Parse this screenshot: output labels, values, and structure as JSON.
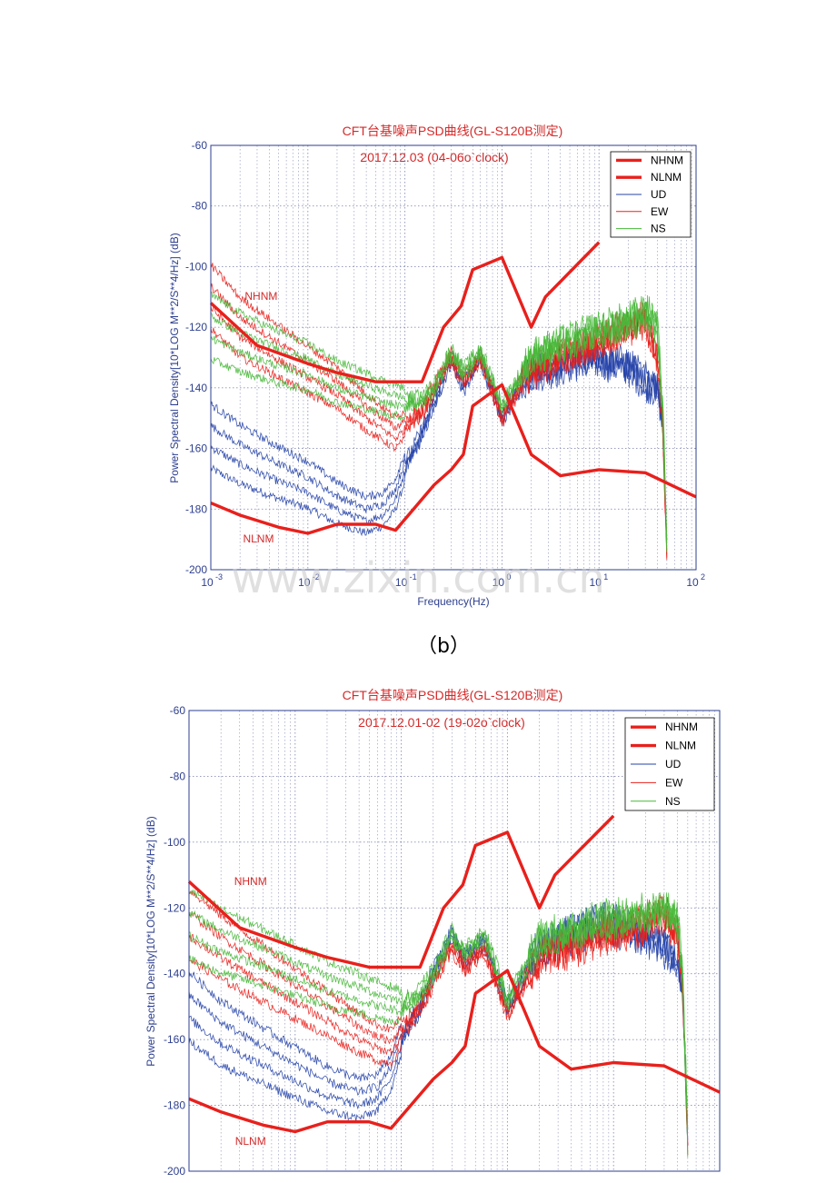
{
  "caption_b": "（b）",
  "watermark": "www.zixin.com.cn",
  "colors": {
    "nhnm": "#e8201c",
    "nlnm": "#e8201c",
    "ud": "#2543a8",
    "ew": "#e8201c",
    "ns": "#48b83a"
  },
  "chart_data": [
    {
      "type": "line",
      "title": "CFT台基噪声PSD曲线(GL-S120B测定)",
      "subtitle": "2017.12.03    (04-06o`clock)",
      "xlabel": "Frequency(Hz)",
      "ylabel": "Power Spectral Density[10*LOG M**2/S**4/Hz] (dB)",
      "xscale": "log",
      "xlim": [
        0.001,
        100
      ],
      "ylim": [
        -200,
        -60
      ],
      "xticks": [
        0.001,
        0.01,
        0.1,
        1,
        10,
        100
      ],
      "xtick_labels": [
        {
          "base": "10",
          "exp": "-3"
        },
        {
          "base": "10",
          "exp": "-2"
        },
        {
          "base": "10",
          "exp": "-1"
        },
        {
          "base": "10",
          "exp": "0"
        },
        {
          "base": "10",
          "exp": "1"
        },
        {
          "base": "10",
          "exp": "2"
        }
      ],
      "yticks": [
        -200,
        -180,
        -160,
        -140,
        -120,
        -100,
        -80,
        -60
      ],
      "ytick_labels": [
        "-200",
        "-180",
        "-160",
        "-140",
        "-120",
        "-100",
        "-80",
        "-60"
      ],
      "grid": true,
      "legend": {
        "position": "top-right",
        "entries": [
          "NHNM",
          "NLNM",
          "UD",
          "EW",
          "NS"
        ]
      },
      "annotations": [
        {
          "text": "NHNM",
          "x": 0.0033,
          "y": -111
        },
        {
          "text": "NLNM",
          "x": 0.0031,
          "y": -191
        }
      ],
      "series": [
        {
          "name": "NHNM",
          "x": [
            0.001,
            0.003,
            0.0067,
            0.01,
            0.02,
            0.05,
            0.15,
            0.25,
            0.38,
            0.5,
            1,
            2,
            2.8,
            10
          ],
          "y": [
            -112,
            -126,
            -130,
            -132,
            -135,
            -138,
            -138,
            -120,
            -113,
            -101,
            -97,
            -120,
            -110,
            -92
          ]
        },
        {
          "name": "NLNM",
          "x": [
            0.001,
            0.002,
            0.005,
            0.01,
            0.02,
            0.05,
            0.08,
            0.2,
            0.3,
            0.4,
            0.5,
            1,
            2,
            4,
            10,
            30,
            100
          ],
          "y": [
            -178,
            -182,
            -186,
            -188,
            -185,
            -185,
            -187,
            -172,
            -167,
            -162,
            -146,
            -139,
            -162,
            -169,
            -167,
            -168,
            -176
          ]
        },
        {
          "name": "UD",
          "x": [
            0.001,
            0.002,
            0.005,
            0.01,
            0.02,
            0.04,
            0.06,
            0.08,
            0.1,
            0.15,
            0.2,
            0.3,
            0.4,
            0.6,
            1,
            1.5,
            2,
            4,
            8,
            20,
            30,
            40,
            45,
            50
          ],
          "y": [
            -156,
            -162,
            -168,
            -172,
            -178,
            -182,
            -180,
            -175,
            -166,
            -155,
            -145,
            -130,
            -140,
            -130,
            -150,
            -140,
            -135,
            -133,
            -130,
            -133,
            -138,
            -140,
            -150,
            -190
          ]
        },
        {
          "name": "EW",
          "x": [
            0.001,
            0.002,
            0.005,
            0.01,
            0.02,
            0.04,
            0.06,
            0.08,
            0.1,
            0.15,
            0.2,
            0.3,
            0.4,
            0.6,
            1,
            1.5,
            2,
            4,
            8,
            20,
            30,
            40,
            45,
            50
          ],
          "y": [
            -110,
            -120,
            -128,
            -134,
            -140,
            -148,
            -152,
            -155,
            -152,
            -148,
            -140,
            -130,
            -138,
            -130,
            -150,
            -140,
            -135,
            -130,
            -126,
            -120,
            -118,
            -130,
            -150,
            -195
          ]
        },
        {
          "name": "NS",
          "x": [
            0.001,
            0.002,
            0.005,
            0.01,
            0.02,
            0.04,
            0.06,
            0.08,
            0.1,
            0.15,
            0.2,
            0.3,
            0.4,
            0.6,
            1,
            1.5,
            2,
            4,
            8,
            20,
            30,
            40,
            45,
            50
          ],
          "y": [
            -120,
            -125,
            -130,
            -133,
            -138,
            -141,
            -143,
            -144,
            -145,
            -144,
            -140,
            -128,
            -135,
            -128,
            -146,
            -137,
            -130,
            -126,
            -122,
            -118,
            -115,
            -120,
            -145,
            -190
          ]
        }
      ]
    },
    {
      "type": "line",
      "title": "CFT台基噪声PSD曲线(GL-S120B测定)",
      "subtitle": "2017.12.01-02    (19-02o`clock)",
      "xlabel": "",
      "ylabel": "Power Spectral Density[10*LOG M**2/S**4/Hz] (dB)",
      "xscale": "log",
      "xlim": [
        0.001,
        100
      ],
      "ylim": [
        -200,
        -60
      ],
      "xticks": [
        0.001,
        0.01,
        0.1,
        1,
        10,
        100
      ],
      "xtick_labels": [],
      "yticks": [
        -200,
        -180,
        -160,
        -140,
        -120,
        -100,
        -80,
        -60
      ],
      "ytick_labels": [
        "-200",
        "-180",
        "-160",
        "-140",
        "-120",
        "-100",
        "-80",
        "-60"
      ],
      "grid": true,
      "legend": {
        "position": "top-right",
        "entries": [
          "NHNM",
          "NLNM",
          "UD",
          "EW",
          "NS"
        ]
      },
      "annotations": [
        {
          "text": "NHNM",
          "x": 0.0038,
          "y": -113
        },
        {
          "text": "NLNM",
          "x": 0.0038,
          "y": -192
        }
      ],
      "series": [
        {
          "name": "NHNM",
          "x": [
            0.001,
            0.003,
            0.0067,
            0.01,
            0.02,
            0.05,
            0.15,
            0.25,
            0.38,
            0.5,
            1,
            2,
            2.8,
            10
          ],
          "y": [
            -112,
            -126,
            -130,
            -132,
            -135,
            -138,
            -138,
            -120,
            -113,
            -101,
            -97,
            -120,
            -110,
            -92
          ]
        },
        {
          "name": "NLNM",
          "x": [
            0.001,
            0.002,
            0.005,
            0.01,
            0.02,
            0.05,
            0.08,
            0.2,
            0.3,
            0.4,
            0.5,
            1,
            2,
            4,
            10,
            30,
            100
          ],
          "y": [
            -178,
            -182,
            -186,
            -188,
            -185,
            -185,
            -187,
            -172,
            -167,
            -162,
            -146,
            -139,
            -162,
            -169,
            -167,
            -168,
            -176
          ]
        },
        {
          "name": "UD",
          "x": [
            0.001,
            0.002,
            0.005,
            0.01,
            0.02,
            0.04,
            0.06,
            0.08,
            0.1,
            0.15,
            0.2,
            0.3,
            0.4,
            0.6,
            1,
            1.5,
            2,
            4,
            8,
            20,
            30,
            40,
            45,
            50
          ],
          "y": [
            -150,
            -158,
            -165,
            -170,
            -175,
            -178,
            -176,
            -170,
            -160,
            -150,
            -140,
            -128,
            -136,
            -130,
            -150,
            -140,
            -132,
            -128,
            -125,
            -128,
            -132,
            -135,
            -145,
            -190
          ]
        },
        {
          "name": "EW",
          "x": [
            0.001,
            0.002,
            0.005,
            0.01,
            0.02,
            0.04,
            0.06,
            0.08,
            0.1,
            0.15,
            0.2,
            0.3,
            0.4,
            0.6,
            1,
            1.5,
            2,
            4,
            8,
            20,
            30,
            40,
            45,
            50
          ],
          "y": [
            -125,
            -132,
            -140,
            -146,
            -152,
            -158,
            -161,
            -162,
            -158,
            -150,
            -142,
            -132,
            -138,
            -132,
            -152,
            -142,
            -135,
            -132,
            -128,
            -125,
            -122,
            -128,
            -145,
            -190
          ]
        },
        {
          "name": "NS",
          "x": [
            0.001,
            0.002,
            0.005,
            0.01,
            0.02,
            0.04,
            0.06,
            0.08,
            0.1,
            0.15,
            0.2,
            0.3,
            0.4,
            0.6,
            1,
            1.5,
            2,
            4,
            8,
            20,
            30,
            40,
            45,
            50
          ],
          "y": [
            -125,
            -130,
            -135,
            -139,
            -143,
            -146,
            -148,
            -149,
            -150,
            -146,
            -140,
            -128,
            -134,
            -128,
            -148,
            -138,
            -130,
            -127,
            -124,
            -122,
            -120,
            -124,
            -142,
            -190
          ]
        }
      ]
    }
  ]
}
